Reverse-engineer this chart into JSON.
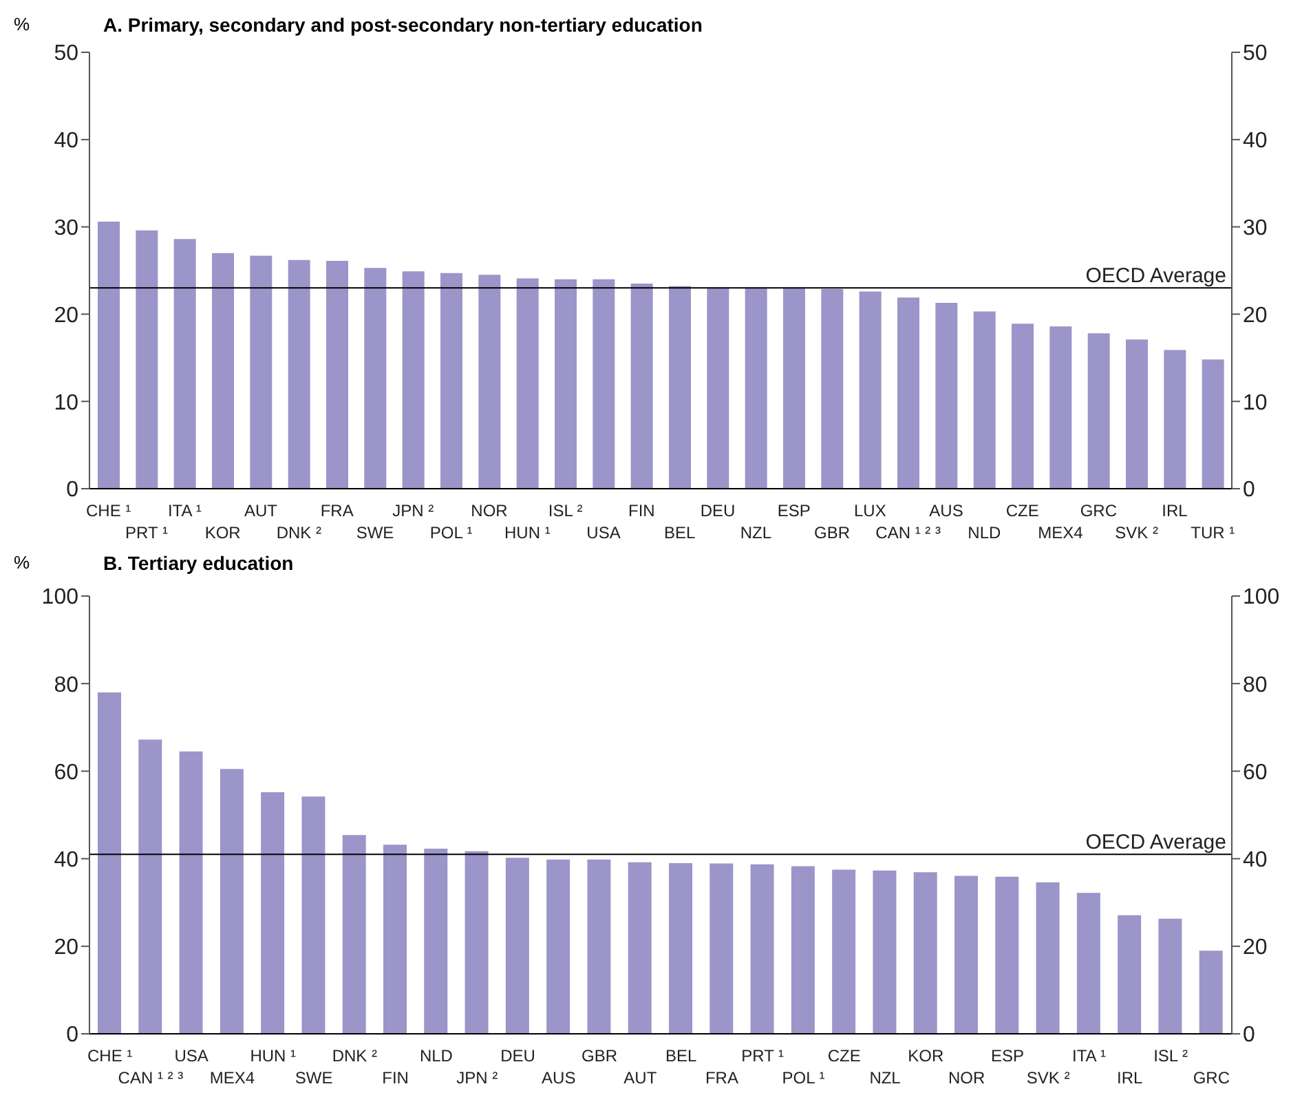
{
  "chart_data": [
    {
      "type": "bar",
      "title": "A. Primary, secondary and post-secondary non-tertiary education",
      "ylabel": "%",
      "categories": [
        "CHE ¹",
        "PRT ¹",
        "ITA ¹",
        "KOR",
        "AUT",
        "DNK ²",
        "FRA",
        "SWE",
        "JPN ²",
        "POL ¹",
        "NOR",
        "HUN ¹",
        "ISL ²",
        "USA",
        "FIN",
        "BEL",
        "DEU",
        "NZL",
        "ESP",
        "GBR",
        "LUX",
        "CAN ¹ ² ³",
        "AUS",
        "NLD",
        "CZE",
        "MEX4",
        "GRC",
        "SVK ²",
        "IRL",
        "TUR ¹"
      ],
      "values": [
        30.6,
        29.6,
        28.6,
        27.0,
        26.7,
        26.2,
        26.1,
        25.3,
        24.9,
        24.7,
        24.5,
        24.1,
        24.0,
        24.0,
        23.5,
        23.2,
        23.0,
        23.0,
        23.0,
        22.9,
        22.6,
        21.9,
        21.3,
        20.3,
        18.9,
        18.6,
        17.8,
        17.1,
        15.9,
        14.8
      ],
      "color": "#9b95c9",
      "ylim": [
        0,
        50
      ],
      "yticks": [
        0,
        10,
        20,
        30,
        40,
        50
      ],
      "y2lim": [
        0,
        50
      ],
      "y2ticks": [
        0,
        10,
        20,
        30,
        40,
        50
      ],
      "ref_lines": [
        {
          "axis": "y",
          "value": 23,
          "label": "OECD Average",
          "color": "#000000"
        }
      ]
    },
    {
      "type": "bar",
      "title": "B. Tertiary education",
      "ylabel": "%",
      "categories": [
        "CHE ¹",
        "CAN ¹ ² ³",
        "USA",
        "MEX4",
        "HUN ¹",
        "SWE",
        "DNK ²",
        "FIN",
        "NLD",
        "JPN ²",
        "DEU",
        "AUS",
        "GBR",
        "AUT",
        "BEL",
        "FRA",
        "PRT ¹",
        "POL ¹",
        "CZE",
        "NZL",
        "KOR",
        "NOR",
        "ESP",
        "SVK ²",
        "ITA ¹",
        "IRL",
        "ISL ²",
        "GRC"
      ],
      "values": [
        78,
        67.2,
        64.5,
        60.5,
        55.2,
        54.2,
        45.4,
        43.2,
        42.3,
        41.7,
        40.2,
        39.8,
        39.8,
        39.2,
        39.0,
        38.9,
        38.7,
        38.3,
        37.5,
        37.3,
        36.9,
        36.1,
        35.9,
        34.6,
        32.2,
        27.1,
        26.3,
        19.0
      ],
      "color": "#9b95c9",
      "ylim": [
        0,
        100
      ],
      "yticks": [
        0,
        20,
        40,
        60,
        80,
        100
      ],
      "y2lim": [
        0,
        100
      ],
      "y2ticks": [
        0,
        20,
        40,
        60,
        80,
        100
      ],
      "ref_lines": [
        {
          "axis": "y",
          "value": 41,
          "label": "OECD Average",
          "color": "#000000"
        }
      ]
    }
  ]
}
